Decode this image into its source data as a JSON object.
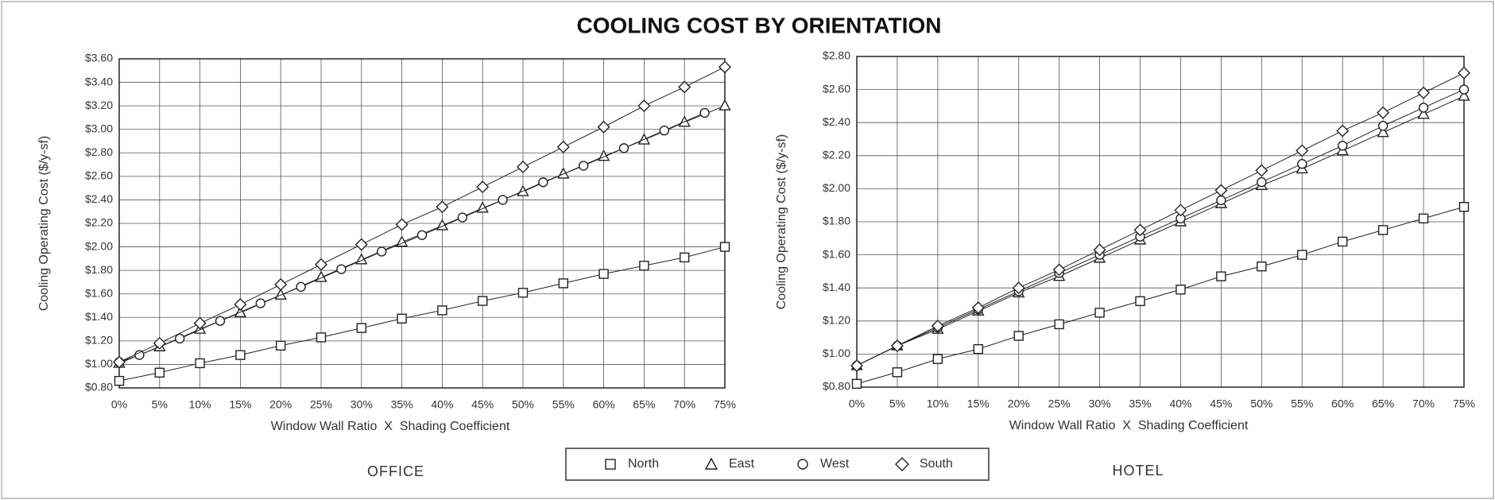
{
  "title": "COOLING COST BY ORIENTATION",
  "chart_data": [
    {
      "type": "line",
      "title": "OFFICE",
      "xlabel": "Window Wall Ratio  X  Shading Coefficient",
      "ylabel": "Cooling Operating Cost ($/y-sf)",
      "x": [
        0,
        5,
        10,
        15,
        20,
        25,
        30,
        35,
        40,
        45,
        50,
        55,
        60,
        65,
        70,
        75
      ],
      "xlim": [
        0,
        75
      ],
      "xticks": [
        {
          "value": 0,
          "label": "0%"
        },
        {
          "value": 5,
          "label": "5%"
        },
        {
          "value": 10,
          "label": "10%"
        },
        {
          "value": 15,
          "label": "15%"
        },
        {
          "value": 20,
          "label": "20%"
        },
        {
          "value": 25,
          "label": "25%"
        },
        {
          "value": 30,
          "label": "30%"
        },
        {
          "value": 35,
          "label": "35%"
        },
        {
          "value": 40,
          "label": "40%"
        },
        {
          "value": 45,
          "label": "45%"
        },
        {
          "value": 50,
          "label": "50%"
        },
        {
          "value": 55,
          "label": "55%"
        },
        {
          "value": 60,
          "label": "60%"
        },
        {
          "value": 65,
          "label": "65%"
        },
        {
          "value": 70,
          "label": "70%"
        },
        {
          "value": 75,
          "label": "75%"
        }
      ],
      "ylim": [
        0.8,
        3.6
      ],
      "yticks": [
        {
          "value": 0.8,
          "label": "$0.80"
        },
        {
          "value": 1.0,
          "label": "$1.00"
        },
        {
          "value": 1.2,
          "label": "$1.20"
        },
        {
          "value": 1.4,
          "label": "$1.40"
        },
        {
          "value": 1.6,
          "label": "$1.60"
        },
        {
          "value": 1.8,
          "label": "$1.80"
        },
        {
          "value": 2.0,
          "label": "$2.00"
        },
        {
          "value": 2.2,
          "label": "$2.20"
        },
        {
          "value": 2.4,
          "label": "$2.40"
        },
        {
          "value": 2.6,
          "label": "$2.60"
        },
        {
          "value": 2.8,
          "label": "$2.80"
        },
        {
          "value": 3.0,
          "label": "$3.00"
        },
        {
          "value": 3.2,
          "label": "$3.20"
        },
        {
          "value": 3.4,
          "label": "$3.40"
        },
        {
          "value": 3.6,
          "label": "$3.60"
        }
      ],
      "grid": true,
      "series": [
        {
          "name": "North",
          "marker": "square",
          "color": "#222",
          "values": [
            0.86,
            0.93,
            1.01,
            1.08,
            1.16,
            1.23,
            1.31,
            1.39,
            1.46,
            1.54,
            1.61,
            1.69,
            1.77,
            1.84,
            1.91,
            2.0
          ]
        },
        {
          "name": "East",
          "marker": "triangle",
          "color": "#222",
          "values": [
            1.01,
            1.15,
            1.3,
            1.44,
            1.59,
            1.74,
            1.89,
            2.04,
            2.18,
            2.33,
            2.47,
            2.62,
            2.77,
            2.91,
            3.06,
            3.2
          ]
        },
        {
          "name": "West",
          "marker": "circle",
          "color": "#222",
          "x": [
            0,
            2.5,
            7.5,
            12.5,
            17.5,
            22.5,
            27.5,
            32.5,
            37.5,
            42.5,
            47.5,
            52.5,
            57.5,
            62.5,
            67.5,
            72.5
          ],
          "values": [
            1.02,
            1.08,
            1.22,
            1.37,
            1.52,
            1.66,
            1.81,
            1.96,
            2.1,
            2.25,
            2.4,
            2.55,
            2.69,
            2.84,
            2.99,
            3.14
          ]
        },
        {
          "name": "South",
          "marker": "diamond",
          "color": "#222",
          "values": [
            1.02,
            1.18,
            1.35,
            1.51,
            1.68,
            1.85,
            2.02,
            2.19,
            2.34,
            2.51,
            2.68,
            2.85,
            3.02,
            3.2,
            3.36,
            3.53
          ]
        }
      ]
    },
    {
      "type": "line",
      "title": "HOTEL",
      "xlabel": "Window Wall Ratio  X  Shading Coefficient",
      "ylabel": "Cooling Operating Cost ($/y-sf)",
      "x": [
        0,
        5,
        10,
        15,
        20,
        25,
        30,
        35,
        40,
        45,
        50,
        55,
        60,
        65,
        70,
        75
      ],
      "xlim": [
        0,
        75
      ],
      "xticks": [
        {
          "value": 0,
          "label": "0%"
        },
        {
          "value": 5,
          "label": "5%"
        },
        {
          "value": 10,
          "label": "10%"
        },
        {
          "value": 15,
          "label": "15%"
        },
        {
          "value": 20,
          "label": "20%"
        },
        {
          "value": 25,
          "label": "25%"
        },
        {
          "value": 30,
          "label": "30%"
        },
        {
          "value": 35,
          "label": "35%"
        },
        {
          "value": 40,
          "label": "40%"
        },
        {
          "value": 45,
          "label": "45%"
        },
        {
          "value": 50,
          "label": "50%"
        },
        {
          "value": 55,
          "label": "55%"
        },
        {
          "value": 60,
          "label": "60%"
        },
        {
          "value": 65,
          "label": "65%"
        },
        {
          "value": 70,
          "label": "70%"
        },
        {
          "value": 75,
          "label": "75%"
        }
      ],
      "ylim": [
        0.8,
        2.8
      ],
      "yticks": [
        {
          "value": 0.8,
          "label": "$0.80"
        },
        {
          "value": 1.0,
          "label": "$1.00"
        },
        {
          "value": 1.2,
          "label": "$1.20"
        },
        {
          "value": 1.4,
          "label": "$1.40"
        },
        {
          "value": 1.6,
          "label": "$1.60"
        },
        {
          "value": 1.8,
          "label": "$1.80"
        },
        {
          "value": 2.0,
          "label": "$2.00"
        },
        {
          "value": 2.2,
          "label": "$2.20"
        },
        {
          "value": 2.4,
          "label": "$2.40"
        },
        {
          "value": 2.6,
          "label": "$2.60"
        },
        {
          "value": 2.8,
          "label": "$2.80"
        }
      ],
      "grid": true,
      "series": [
        {
          "name": "North",
          "marker": "square",
          "color": "#222",
          "values": [
            0.82,
            0.89,
            0.97,
            1.03,
            1.11,
            1.18,
            1.25,
            1.32,
            1.39,
            1.47,
            1.53,
            1.6,
            1.68,
            1.75,
            1.82,
            1.89
          ]
        },
        {
          "name": "East",
          "marker": "triangle",
          "color": "#222",
          "values": [
            0.93,
            1.05,
            1.15,
            1.26,
            1.37,
            1.47,
            1.58,
            1.69,
            1.8,
            1.91,
            2.02,
            2.12,
            2.23,
            2.34,
            2.45,
            2.56
          ]
        },
        {
          "name": "West",
          "marker": "circle",
          "color": "#222",
          "values": [
            0.93,
            1.05,
            1.16,
            1.27,
            1.38,
            1.49,
            1.6,
            1.71,
            1.82,
            1.93,
            2.04,
            2.15,
            2.26,
            2.38,
            2.49,
            2.6
          ]
        },
        {
          "name": "South",
          "marker": "diamond",
          "color": "#222",
          "values": [
            0.93,
            1.05,
            1.17,
            1.28,
            1.4,
            1.51,
            1.63,
            1.75,
            1.87,
            1.99,
            2.11,
            2.23,
            2.35,
            2.46,
            2.58,
            2.7
          ]
        }
      ]
    }
  ]
}
